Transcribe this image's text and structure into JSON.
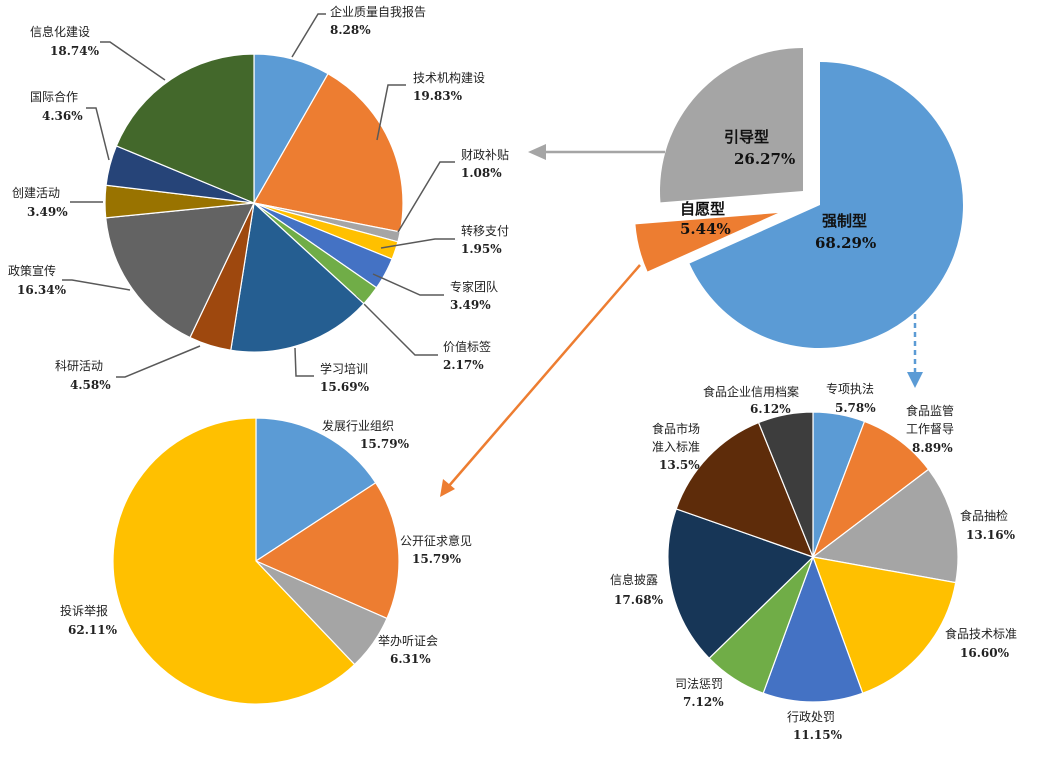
{
  "chart_data": [
    {
      "type": "pie",
      "title": "",
      "start": "top",
      "direction": "clockwise",
      "slices": [
        {
          "label": "企业质量自我报告",
          "value": 8.28,
          "text": "8.28%",
          "color": "#5b9bd5"
        },
        {
          "label": "技术机构建设",
          "value": 19.83,
          "text": "19.83%",
          "color": "#ed7d31"
        },
        {
          "label": "财政补贴",
          "value": 1.08,
          "text": "1.08%",
          "color": "#a5a5a5"
        },
        {
          "label": "转移支付",
          "value": 1.95,
          "text": "1.95%",
          "color": "#ffc000"
        },
        {
          "label": "专家团队",
          "value": 3.49,
          "text": "3.49%",
          "color": "#4472c4"
        },
        {
          "label": "价值标签",
          "value": 2.17,
          "text": "2.17%",
          "color": "#70ad47"
        },
        {
          "label": "学习培训",
          "value": 15.69,
          "text": "15.69%",
          "color": "#255e91"
        },
        {
          "label": "科研活动",
          "value": 4.58,
          "text": "4.58%",
          "color": "#9e480e"
        },
        {
          "label": "政策宣传",
          "value": 16.34,
          "text": "16.34%",
          "color": "#636363"
        },
        {
          "label": "创建活动",
          "value": 3.49,
          "text": "3.49%",
          "color": "#997300"
        },
        {
          "label": "国际合作",
          "value": 4.36,
          "text": "4.36%",
          "color": "#264478"
        },
        {
          "label": "信息化建设",
          "value": 18.74,
          "text": "18.74%",
          "color": "#43682b"
        }
      ]
    },
    {
      "type": "pie",
      "title": "",
      "exploded": true,
      "start": "top",
      "direction": "clockwise",
      "slices": [
        {
          "label": "强制型",
          "value": 68.29,
          "text": "68.29%",
          "color": "#5b9bd5"
        },
        {
          "label": "自愿型",
          "value": 5.44,
          "text": "5.44%",
          "color": "#ed7d31"
        },
        {
          "label": "引导型",
          "value": 26.27,
          "text": "26.27%",
          "color": "#a5a5a5"
        }
      ]
    },
    {
      "type": "pie",
      "title": "",
      "start": "top",
      "direction": "clockwise",
      "slices": [
        {
          "label": "发展行业组织",
          "value": 15.79,
          "text": "15.79%",
          "color": "#5b9bd5"
        },
        {
          "label": "公开征求意见",
          "value": 15.79,
          "text": "15.79%",
          "color": "#ed7d31"
        },
        {
          "label": "举办听证会",
          "value": 6.31,
          "text": "6.31%",
          "color": "#a5a5a5"
        },
        {
          "label": "投诉举报",
          "value": 62.11,
          "text": "62.11%",
          "color": "#ffc000"
        }
      ]
    },
    {
      "type": "pie",
      "title": "",
      "start": "top",
      "direction": "clockwise",
      "slices": [
        {
          "label": "专项执法",
          "value": 5.78,
          "text": "5.78%",
          "color": "#5b9bd5"
        },
        {
          "label": "食品监管工作督导",
          "lines": [
            "食品监管",
            "工作督导"
          ],
          "value": 8.89,
          "text": "8.89%",
          "color": "#ed7d31"
        },
        {
          "label": "食品抽检",
          "value": 13.16,
          "text": "13.16%",
          "color": "#a5a5a5"
        },
        {
          "label": "食品技术标准",
          "value": 16.6,
          "text": "16.60%",
          "color": "#ffc000"
        },
        {
          "label": "行政处罚",
          "value": 11.15,
          "text": "11.15%",
          "color": "#4472c4"
        },
        {
          "label": "司法惩罚",
          "value": 7.12,
          "text": "7.12%",
          "color": "#70ad47"
        },
        {
          "label": "信息披露",
          "value": 17.68,
          "text": "17.68%",
          "color": "#173657"
        },
        {
          "label": "食品市场准入标准",
          "lines": [
            "食品市场",
            "准入标准"
          ],
          "value": 13.5,
          "text": "13.5%",
          "color": "#5e2c0a"
        },
        {
          "label": "食品企业信用档案",
          "value": 6.12,
          "text": "6.12%",
          "color": "#3d3d3d"
        }
      ]
    }
  ],
  "arrows": {
    "to_pie1_color": "#a5a5a5",
    "to_pie3_color": "#ed7d31",
    "to_pie4_color": "#5b9bd5"
  }
}
